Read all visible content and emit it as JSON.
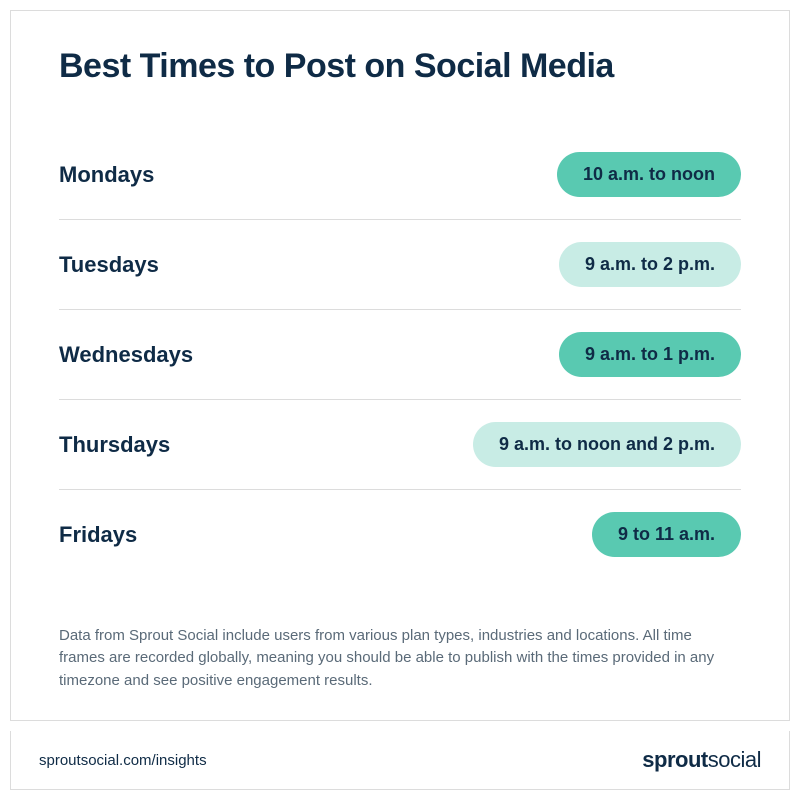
{
  "title": "Best Times to Post on Social Media",
  "pill_colors": {
    "dark": "#59c9b1",
    "light": "#c8ece5"
  },
  "text_color": "#0f2b46",
  "border_color": "#dcdcdc",
  "rows": [
    {
      "day": "Mondays",
      "time": "10 a.m. to noon",
      "shade": "dark"
    },
    {
      "day": "Tuesdays",
      "time": "9 a.m. to 2 p.m.",
      "shade": "light"
    },
    {
      "day": "Wednesdays",
      "time": "9 a.m. to 1 p.m.",
      "shade": "dark"
    },
    {
      "day": "Thursdays",
      "time": "9 a.m. to noon and 2 p.m.",
      "shade": "light"
    },
    {
      "day": "Fridays",
      "time": "9 to 11 a.m.",
      "shade": "dark"
    }
  ],
  "footnote": "Data from Sprout Social include users from various plan types, industries and locations. All time frames are recorded globally, meaning you should be able to publish with the times provided in any timezone and see positive engagement results.",
  "footer_url": "sproutsocial.com/insights",
  "brand_prefix": "sprout",
  "brand_suffix": "social"
}
